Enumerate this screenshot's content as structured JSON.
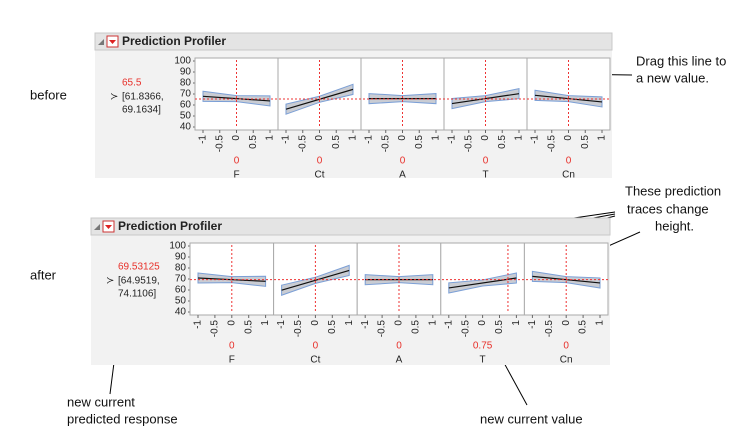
{
  "annotations": {
    "before": "before",
    "after": "after",
    "drag": [
      "Drag this line to",
      "a new value."
    ],
    "traces": [
      "These prediction",
      "traces change",
      "height."
    ],
    "response": [
      "new current",
      "predicted response"
    ],
    "current": "new current value"
  },
  "panels": [
    {
      "title": "Prediction Profiler",
      "response": {
        "value": "65.5",
        "interval": [
          "[61.8366,",
          "69.1634]"
        ]
      },
      "yticks": [
        "100",
        "90",
        "80",
        "70",
        "60",
        "50",
        "40"
      ],
      "xticks": [
        "-1",
        "-0.5",
        "0",
        "0.5",
        "1"
      ],
      "factors": [
        {
          "name": "F",
          "current": "0"
        },
        {
          "name": "Ct",
          "current": "0"
        },
        {
          "name": "A",
          "current": "0"
        },
        {
          "name": "T",
          "current": "0"
        },
        {
          "name": "Cn",
          "current": "0"
        }
      ]
    },
    {
      "title": "Prediction Profiler",
      "response": {
        "value": "69.53125",
        "interval": [
          "[64.9519,",
          "74.1106]"
        ]
      },
      "yticks": [
        "100",
        "90",
        "80",
        "70",
        "60",
        "50",
        "40"
      ],
      "xticks": [
        "-1",
        "-0.5",
        "0",
        "0.5",
        "1"
      ],
      "factors": [
        {
          "name": "F",
          "current": "0"
        },
        {
          "name": "Ct",
          "current": "0"
        },
        {
          "name": "A",
          "current": "0"
        },
        {
          "name": "T",
          "current": "0.75"
        },
        {
          "name": "Cn",
          "current": "0"
        }
      ]
    }
  ]
}
